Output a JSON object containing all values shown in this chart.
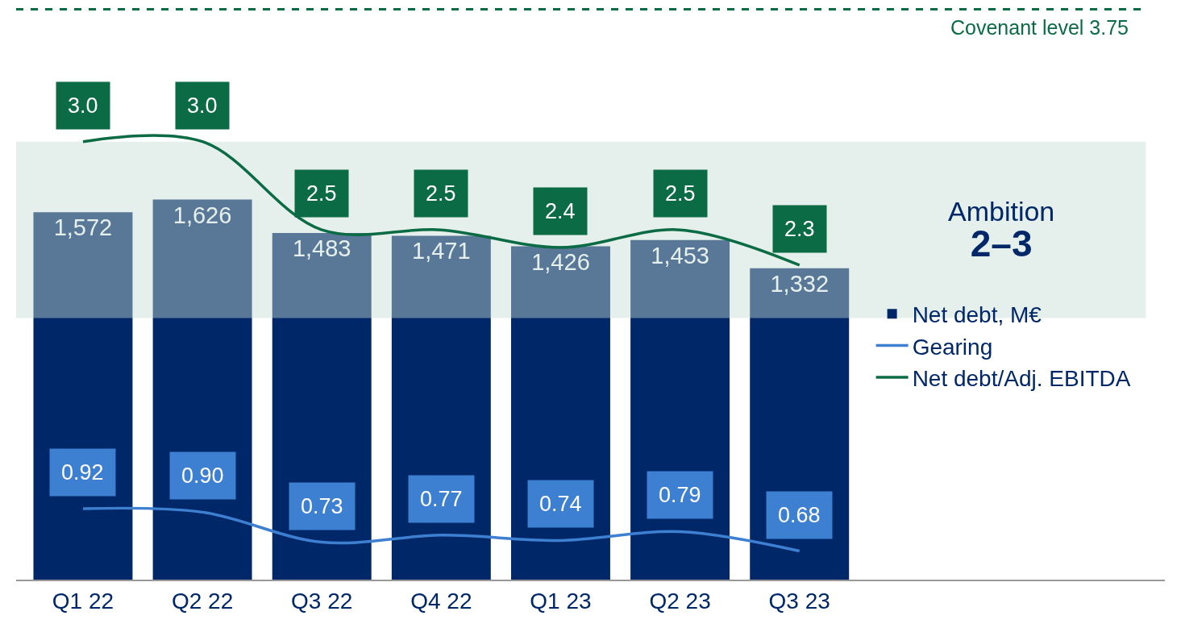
{
  "chart_data": {
    "type": "bar",
    "categories": [
      "Q1 22",
      "Q2 22",
      "Q3 22",
      "Q4 22",
      "Q1 23",
      "Q2 23",
      "Q3 23"
    ],
    "series": [
      {
        "name": "Net debt, M€",
        "color": "#002768",
        "values": [
          1572,
          1626,
          1483,
          1471,
          1426,
          1453,
          1332
        ],
        "value_labels": [
          "1,572",
          "1,626",
          "1,483",
          "1,471",
          "1,426",
          "1,453",
          "1,332"
        ]
      },
      {
        "name": "Gearing",
        "type": "line",
        "axis": "y2",
        "color": "#3d7fd0",
        "values": [
          0.92,
          0.9,
          0.73,
          0.77,
          0.74,
          0.79,
          0.68
        ],
        "value_labels": [
          "0.92",
          "0.90",
          "0.73",
          "0.77",
          "0.74",
          "0.79",
          "0.68"
        ]
      },
      {
        "name": "Net debt/Adj. EBITDA",
        "type": "line",
        "axis": "y2",
        "color": "#0b6b45",
        "values": [
          3.0,
          3.0,
          2.5,
          2.5,
          2.4,
          2.5,
          2.3
        ],
        "value_labels": [
          "3.0",
          "3.0",
          "2.5",
          "2.5",
          "2.4",
          "2.5",
          "2.3"
        ]
      }
    ],
    "ref_lines": [
      {
        "axis": "y2",
        "value": 3.75,
        "label": "Covenant level 3.75",
        "color": "#0b6b45",
        "line_style": "dashed"
      }
    ],
    "bands": [
      {
        "axis": "y2",
        "from": 2,
        "to": 3,
        "label": "Ambition\n2–3",
        "color": "#c5dcd2"
      }
    ],
    "tick_labels": "x",
    "grid": false,
    "legend": "right",
    "marker": "none",
    "line_style": "solid"
  }
}
